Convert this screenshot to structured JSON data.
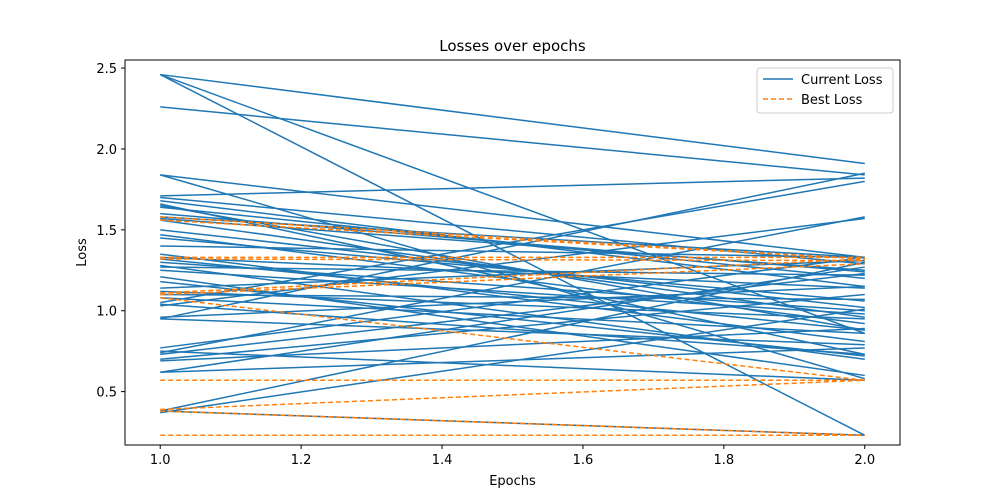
{
  "chart_data": {
    "type": "line",
    "title": "Losses over epochs",
    "xlabel": "Epochs",
    "ylabel": "Loss",
    "xlim": [
      0.95,
      2.05
    ],
    "ylim": [
      0.17,
      2.55
    ],
    "xticks": [
      1.0,
      1.2,
      1.4,
      1.6,
      1.8,
      2.0
    ],
    "xtick_labels": [
      "1.0",
      "1.2",
      "1.4",
      "1.6",
      "1.8",
      "2.0"
    ],
    "yticks": [
      0.5,
      1.0,
      1.5,
      2.0,
      2.5
    ],
    "ytick_labels": [
      "0.5",
      "1.0",
      "1.5",
      "2.0",
      "2.5"
    ],
    "grid": false,
    "legend_position": "top-right",
    "colors": {
      "current": "#1f77b4",
      "best": "#ff7f0e"
    },
    "series": [
      {
        "name": "Current Loss",
        "style": "solid",
        "segments": [
          [
            2.46,
            1.91
          ],
          [
            2.46,
            0.86
          ],
          [
            2.46,
            0.23
          ],
          [
            2.26,
            1.84
          ],
          [
            1.84,
            0.58
          ],
          [
            1.84,
            1.33
          ],
          [
            1.71,
            1.82
          ],
          [
            1.7,
            1.29
          ],
          [
            1.68,
            1.15
          ],
          [
            1.66,
            0.73
          ],
          [
            1.65,
            0.88
          ],
          [
            1.64,
            1.2
          ],
          [
            1.6,
            1.24
          ],
          [
            1.58,
            1.33
          ],
          [
            1.57,
            1.25
          ],
          [
            1.56,
            0.96
          ],
          [
            1.5,
            1.02
          ],
          [
            1.47,
            0.92
          ],
          [
            1.45,
            1.06
          ],
          [
            1.4,
            1.33
          ],
          [
            1.35,
            0.81
          ],
          [
            1.33,
            1.14
          ],
          [
            1.32,
            0.88
          ],
          [
            1.3,
            1.0
          ],
          [
            1.28,
            0.7
          ],
          [
            1.27,
            1.22
          ],
          [
            1.25,
            0.98
          ],
          [
            1.21,
            0.6
          ],
          [
            1.18,
            0.72
          ],
          [
            1.14,
            1.31
          ],
          [
            1.12,
            0.95
          ],
          [
            1.1,
            1.07
          ],
          [
            1.08,
            0.86
          ],
          [
            1.05,
            1.8
          ],
          [
            1.04,
            0.73
          ],
          [
            1.03,
            1.57
          ],
          [
            0.96,
            1.15
          ],
          [
            0.95,
            1.85
          ],
          [
            0.95,
            0.79
          ],
          [
            0.77,
            1.33
          ],
          [
            0.75,
            0.57
          ],
          [
            0.74,
            1.58
          ],
          [
            0.73,
            1.23
          ],
          [
            0.7,
            1.1
          ],
          [
            0.69,
            0.89
          ],
          [
            0.62,
            1.27
          ],
          [
            0.62,
            0.77
          ],
          [
            0.38,
            1.3
          ],
          [
            0.38,
            0.23
          ],
          [
            0.37,
            1.01
          ]
        ]
      },
      {
        "name": "Best Loss",
        "style": "dashed",
        "segments": [
          [
            1.58,
            1.32
          ],
          [
            1.56,
            1.32
          ],
          [
            1.33,
            1.33
          ],
          [
            1.32,
            1.31
          ],
          [
            1.11,
            1.32
          ],
          [
            1.1,
            1.29
          ],
          [
            1.08,
            0.57
          ],
          [
            0.57,
            0.57
          ],
          [
            0.39,
            0.57
          ],
          [
            0.38,
            0.23
          ],
          [
            0.23,
            0.23
          ]
        ]
      }
    ]
  }
}
